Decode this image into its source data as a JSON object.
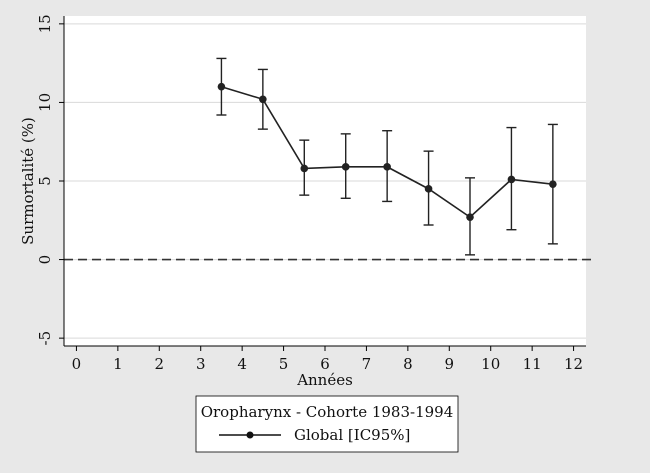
{
  "chart_data": {
    "type": "line",
    "title": "",
    "xlabel": "Années",
    "ylabel": "Surmortalité (%)",
    "xlim": [
      -0.3,
      12.3
    ],
    "ylim": [
      -5.5,
      15.5
    ],
    "xticks": [
      0,
      1,
      2,
      3,
      4,
      5,
      6,
      7,
      8,
      9,
      10,
      11,
      12
    ],
    "yticks": [
      -5,
      0,
      5,
      10,
      15
    ],
    "grid": true,
    "reference_line": {
      "y": 0,
      "style": "dashed"
    },
    "legend": {
      "position": "bottom",
      "title": "Oropharynx - Cohorte 1983-1994",
      "entries": [
        "Global [IC95%]"
      ]
    },
    "series": [
      {
        "name": "Global [IC95%]",
        "x": [
          3.5,
          4.5,
          5.5,
          6.5,
          7.5,
          8.5,
          9.5,
          10.5,
          11.5
        ],
        "y": [
          11.0,
          10.2,
          5.8,
          5.9,
          5.9,
          4.5,
          2.7,
          5.1,
          4.8
        ],
        "ci_low": [
          9.2,
          8.3,
          4.1,
          3.9,
          3.7,
          2.2,
          0.3,
          1.9,
          1.0
        ],
        "ci_high": [
          12.8,
          12.1,
          7.6,
          8.0,
          8.2,
          6.9,
          5.2,
          8.4,
          8.6
        ]
      }
    ]
  }
}
